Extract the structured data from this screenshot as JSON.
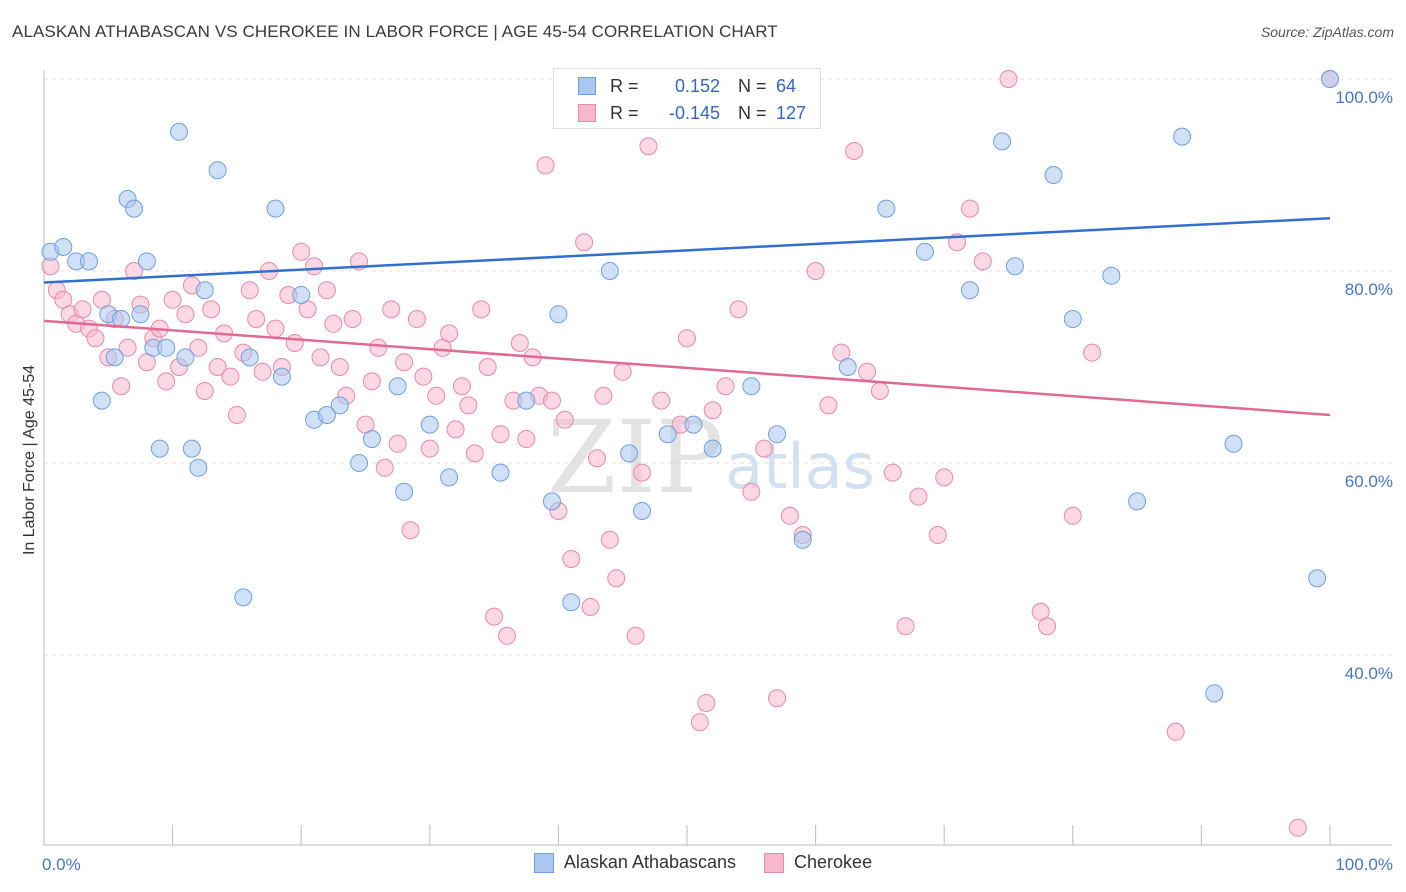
{
  "header": {
    "title": "ALASKAN ATHABASCAN VS CHEROKEE IN LABOR FORCE | AGE 45-54 CORRELATION CHART",
    "source": "Source: ZipAtlas.com"
  },
  "watermark": {
    "zip": "ZIP",
    "atlas": "atlas"
  },
  "legend_top": {
    "rows": [
      {
        "r_label": "R =",
        "r_value": "0.152",
        "n_label": "N =",
        "n_value": "64"
      },
      {
        "r_label": "R =",
        "r_value": "-0.145",
        "n_label": "N =",
        "n_value": "127"
      }
    ]
  },
  "chart_data": {
    "type": "scatter",
    "title": "ALASKAN ATHABASCAN VS CHEROKEE IN LABOR FORCE | AGE 45-54 CORRELATION CHART",
    "xlabel": "",
    "ylabel": "In Labor Force | Age 45-54",
    "xlim": [
      0,
      100
    ],
    "ylim": [
      20,
      102
    ],
    "x_tick_labels": [
      "0.0%",
      "100.0%"
    ],
    "y_ticks": [
      40,
      60,
      80,
      100
    ],
    "y_tick_labels": [
      "40.0%",
      "60.0%",
      "80.0%",
      "100.0%"
    ],
    "grid": true,
    "colors": {
      "blue_fill": "#aac8f0",
      "blue_stroke": "#6f9fe0",
      "blue_line": "#3370cc",
      "pink_fill": "#f7b8cc",
      "pink_stroke": "#e98aa8",
      "pink_line": "#e06a94"
    },
    "series": [
      {
        "name": "Alaskan Athabascans",
        "color": "#aac8f0",
        "R": 0.152,
        "N": 64,
        "trend": [
          [
            0,
            78.8
          ],
          [
            100,
            85.5
          ]
        ],
        "points": [
          [
            0.5,
            82.0
          ],
          [
            1.5,
            82.5
          ],
          [
            2.5,
            81.0
          ],
          [
            3.5,
            81.0
          ],
          [
            5.0,
            75.5
          ],
          [
            4.5,
            66.5
          ],
          [
            5.5,
            71.0
          ],
          [
            6.0,
            75.0
          ],
          [
            6.5,
            87.5
          ],
          [
            7.0,
            86.5
          ],
          [
            7.5,
            75.5
          ],
          [
            8.0,
            81.0
          ],
          [
            8.5,
            72.0
          ],
          [
            9.0,
            61.5
          ],
          [
            9.5,
            72.0
          ],
          [
            10.5,
            94.5
          ],
          [
            11.0,
            71.0
          ],
          [
            11.5,
            61.5
          ],
          [
            12.0,
            59.5
          ],
          [
            12.5,
            78.0
          ],
          [
            13.5,
            90.5
          ],
          [
            15.5,
            46.0
          ],
          [
            16.0,
            71.0
          ],
          [
            18.0,
            86.5
          ],
          [
            18.5,
            69.0
          ],
          [
            20.0,
            77.5
          ],
          [
            21.0,
            64.5
          ],
          [
            22.0,
            65.0
          ],
          [
            23.0,
            66.0
          ],
          [
            24.5,
            60.0
          ],
          [
            25.5,
            62.5
          ],
          [
            27.5,
            68.0
          ],
          [
            28.0,
            57.0
          ],
          [
            30.0,
            64.0
          ],
          [
            31.5,
            58.5
          ],
          [
            35.5,
            59.0
          ],
          [
            37.5,
            66.5
          ],
          [
            39.5,
            56.0
          ],
          [
            40.0,
            75.5
          ],
          [
            41.0,
            45.5
          ],
          [
            44.0,
            80.0
          ],
          [
            46.5,
            55.0
          ],
          [
            45.5,
            61.0
          ],
          [
            48.5,
            63.0
          ],
          [
            50.5,
            64.0
          ],
          [
            52.0,
            61.5
          ],
          [
            55.0,
            68.0
          ],
          [
            57.0,
            63.0
          ],
          [
            59.0,
            52.0
          ],
          [
            62.5,
            70.0
          ],
          [
            65.5,
            86.5
          ],
          [
            68.5,
            82.0
          ],
          [
            72.0,
            78.0
          ],
          [
            74.5,
            93.5
          ],
          [
            75.5,
            80.5
          ],
          [
            78.5,
            90.0
          ],
          [
            80.0,
            75.0
          ],
          [
            83.0,
            79.5
          ],
          [
            85.0,
            56.0
          ],
          [
            88.5,
            94.0
          ],
          [
            91.0,
            36.0
          ],
          [
            92.5,
            62.0
          ],
          [
            99.0,
            48.0
          ],
          [
            100.0,
            100.0
          ]
        ]
      },
      {
        "name": "Cherokee",
        "color": "#f7b8cc",
        "R": -0.145,
        "N": 127,
        "trend": [
          [
            0,
            74.8
          ],
          [
            100,
            65.0
          ]
        ],
        "points": [
          [
            0.5,
            80.5
          ],
          [
            1.0,
            78.0
          ],
          [
            1.5,
            77.0
          ],
          [
            2.0,
            75.5
          ],
          [
            2.5,
            74.5
          ],
          [
            3.0,
            76.0
          ],
          [
            3.5,
            74.0
          ],
          [
            4.0,
            73.0
          ],
          [
            4.5,
            77.0
          ],
          [
            5.0,
            71.0
          ],
          [
            5.5,
            75.0
          ],
          [
            6.0,
            68.0
          ],
          [
            6.5,
            72.0
          ],
          [
            7.0,
            80.0
          ],
          [
            7.5,
            76.5
          ],
          [
            8.0,
            70.5
          ],
          [
            8.5,
            73.0
          ],
          [
            9.0,
            74.0
          ],
          [
            9.5,
            68.5
          ],
          [
            10.0,
            77.0
          ],
          [
            10.5,
            70.0
          ],
          [
            11.0,
            75.5
          ],
          [
            11.5,
            78.5
          ],
          [
            12.0,
            72.0
          ],
          [
            12.5,
            67.5
          ],
          [
            13.0,
            76.0
          ],
          [
            13.5,
            70.0
          ],
          [
            14.0,
            73.5
          ],
          [
            14.5,
            69.0
          ],
          [
            15.0,
            65.0
          ],
          [
            15.5,
            71.5
          ],
          [
            16.0,
            78.0
          ],
          [
            16.5,
            75.0
          ],
          [
            17.0,
            69.5
          ],
          [
            17.5,
            80.0
          ],
          [
            18.0,
            74.0
          ],
          [
            18.5,
            70.0
          ],
          [
            19.0,
            77.5
          ],
          [
            19.5,
            72.5
          ],
          [
            20.0,
            82.0
          ],
          [
            20.5,
            76.0
          ],
          [
            21.0,
            80.5
          ],
          [
            21.5,
            71.0
          ],
          [
            22.0,
            78.0
          ],
          [
            22.5,
            74.5
          ],
          [
            23.0,
            70.0
          ],
          [
            23.5,
            67.0
          ],
          [
            24.0,
            75.0
          ],
          [
            24.5,
            81.0
          ],
          [
            25.0,
            64.0
          ],
          [
            25.5,
            68.5
          ],
          [
            26.0,
            72.0
          ],
          [
            26.5,
            59.5
          ],
          [
            27.0,
            76.0
          ],
          [
            27.5,
            62.0
          ],
          [
            28.0,
            70.5
          ],
          [
            28.5,
            53.0
          ],
          [
            29.0,
            75.0
          ],
          [
            29.5,
            69.0
          ],
          [
            30.0,
            61.5
          ],
          [
            30.5,
            67.0
          ],
          [
            31.0,
            72.0
          ],
          [
            31.5,
            73.5
          ],
          [
            32.0,
            63.5
          ],
          [
            32.5,
            68.0
          ],
          [
            33.0,
            66.0
          ],
          [
            33.5,
            61.0
          ],
          [
            34.0,
            76.0
          ],
          [
            34.5,
            70.0
          ],
          [
            35.0,
            44.0
          ],
          [
            35.5,
            63.0
          ],
          [
            36.0,
            42.0
          ],
          [
            36.5,
            66.5
          ],
          [
            37.0,
            72.5
          ],
          [
            37.5,
            62.5
          ],
          [
            38.0,
            71.0
          ],
          [
            38.5,
            67.0
          ],
          [
            39.0,
            91.0
          ],
          [
            39.5,
            66.5
          ],
          [
            40.0,
            55.0
          ],
          [
            40.5,
            64.5
          ],
          [
            41.0,
            50.0
          ],
          [
            42.0,
            83.0
          ],
          [
            42.5,
            45.0
          ],
          [
            43.0,
            60.5
          ],
          [
            43.5,
            67.0
          ],
          [
            44.0,
            52.0
          ],
          [
            44.5,
            48.0
          ],
          [
            45.0,
            69.5
          ],
          [
            46.0,
            42.0
          ],
          [
            46.5,
            59.0
          ],
          [
            47.0,
            93.0
          ],
          [
            48.0,
            66.5
          ],
          [
            49.5,
            64.0
          ],
          [
            50.0,
            73.0
          ],
          [
            51.0,
            33.0
          ],
          [
            51.5,
            35.0
          ],
          [
            52.0,
            65.5
          ],
          [
            53.0,
            68.0
          ],
          [
            54.0,
            76.0
          ],
          [
            55.0,
            57.0
          ],
          [
            56.0,
            61.5
          ],
          [
            57.0,
            35.5
          ],
          [
            58.0,
            54.5
          ],
          [
            59.0,
            52.5
          ],
          [
            60.0,
            80.0
          ],
          [
            61.0,
            66.0
          ],
          [
            62.0,
            71.5
          ],
          [
            63.0,
            92.5
          ],
          [
            64.0,
            69.5
          ],
          [
            65.0,
            67.5
          ],
          [
            66.0,
            59.0
          ],
          [
            67.0,
            43.0
          ],
          [
            68.0,
            56.5
          ],
          [
            69.5,
            52.5
          ],
          [
            70.0,
            58.5
          ],
          [
            71.0,
            83.0
          ],
          [
            72.0,
            86.5
          ],
          [
            73.0,
            81.0
          ],
          [
            75.0,
            100.0
          ],
          [
            77.5,
            44.5
          ],
          [
            78.0,
            43.0
          ],
          [
            80.0,
            54.5
          ],
          [
            81.5,
            71.5
          ],
          [
            88.0,
            32.0
          ],
          [
            97.5,
            22.0
          ],
          [
            100.0,
            100.0
          ]
        ]
      }
    ]
  },
  "legend_bottom": {
    "items": [
      {
        "label": "Alaskan Athabascans"
      },
      {
        "label": "Cherokee"
      }
    ]
  }
}
